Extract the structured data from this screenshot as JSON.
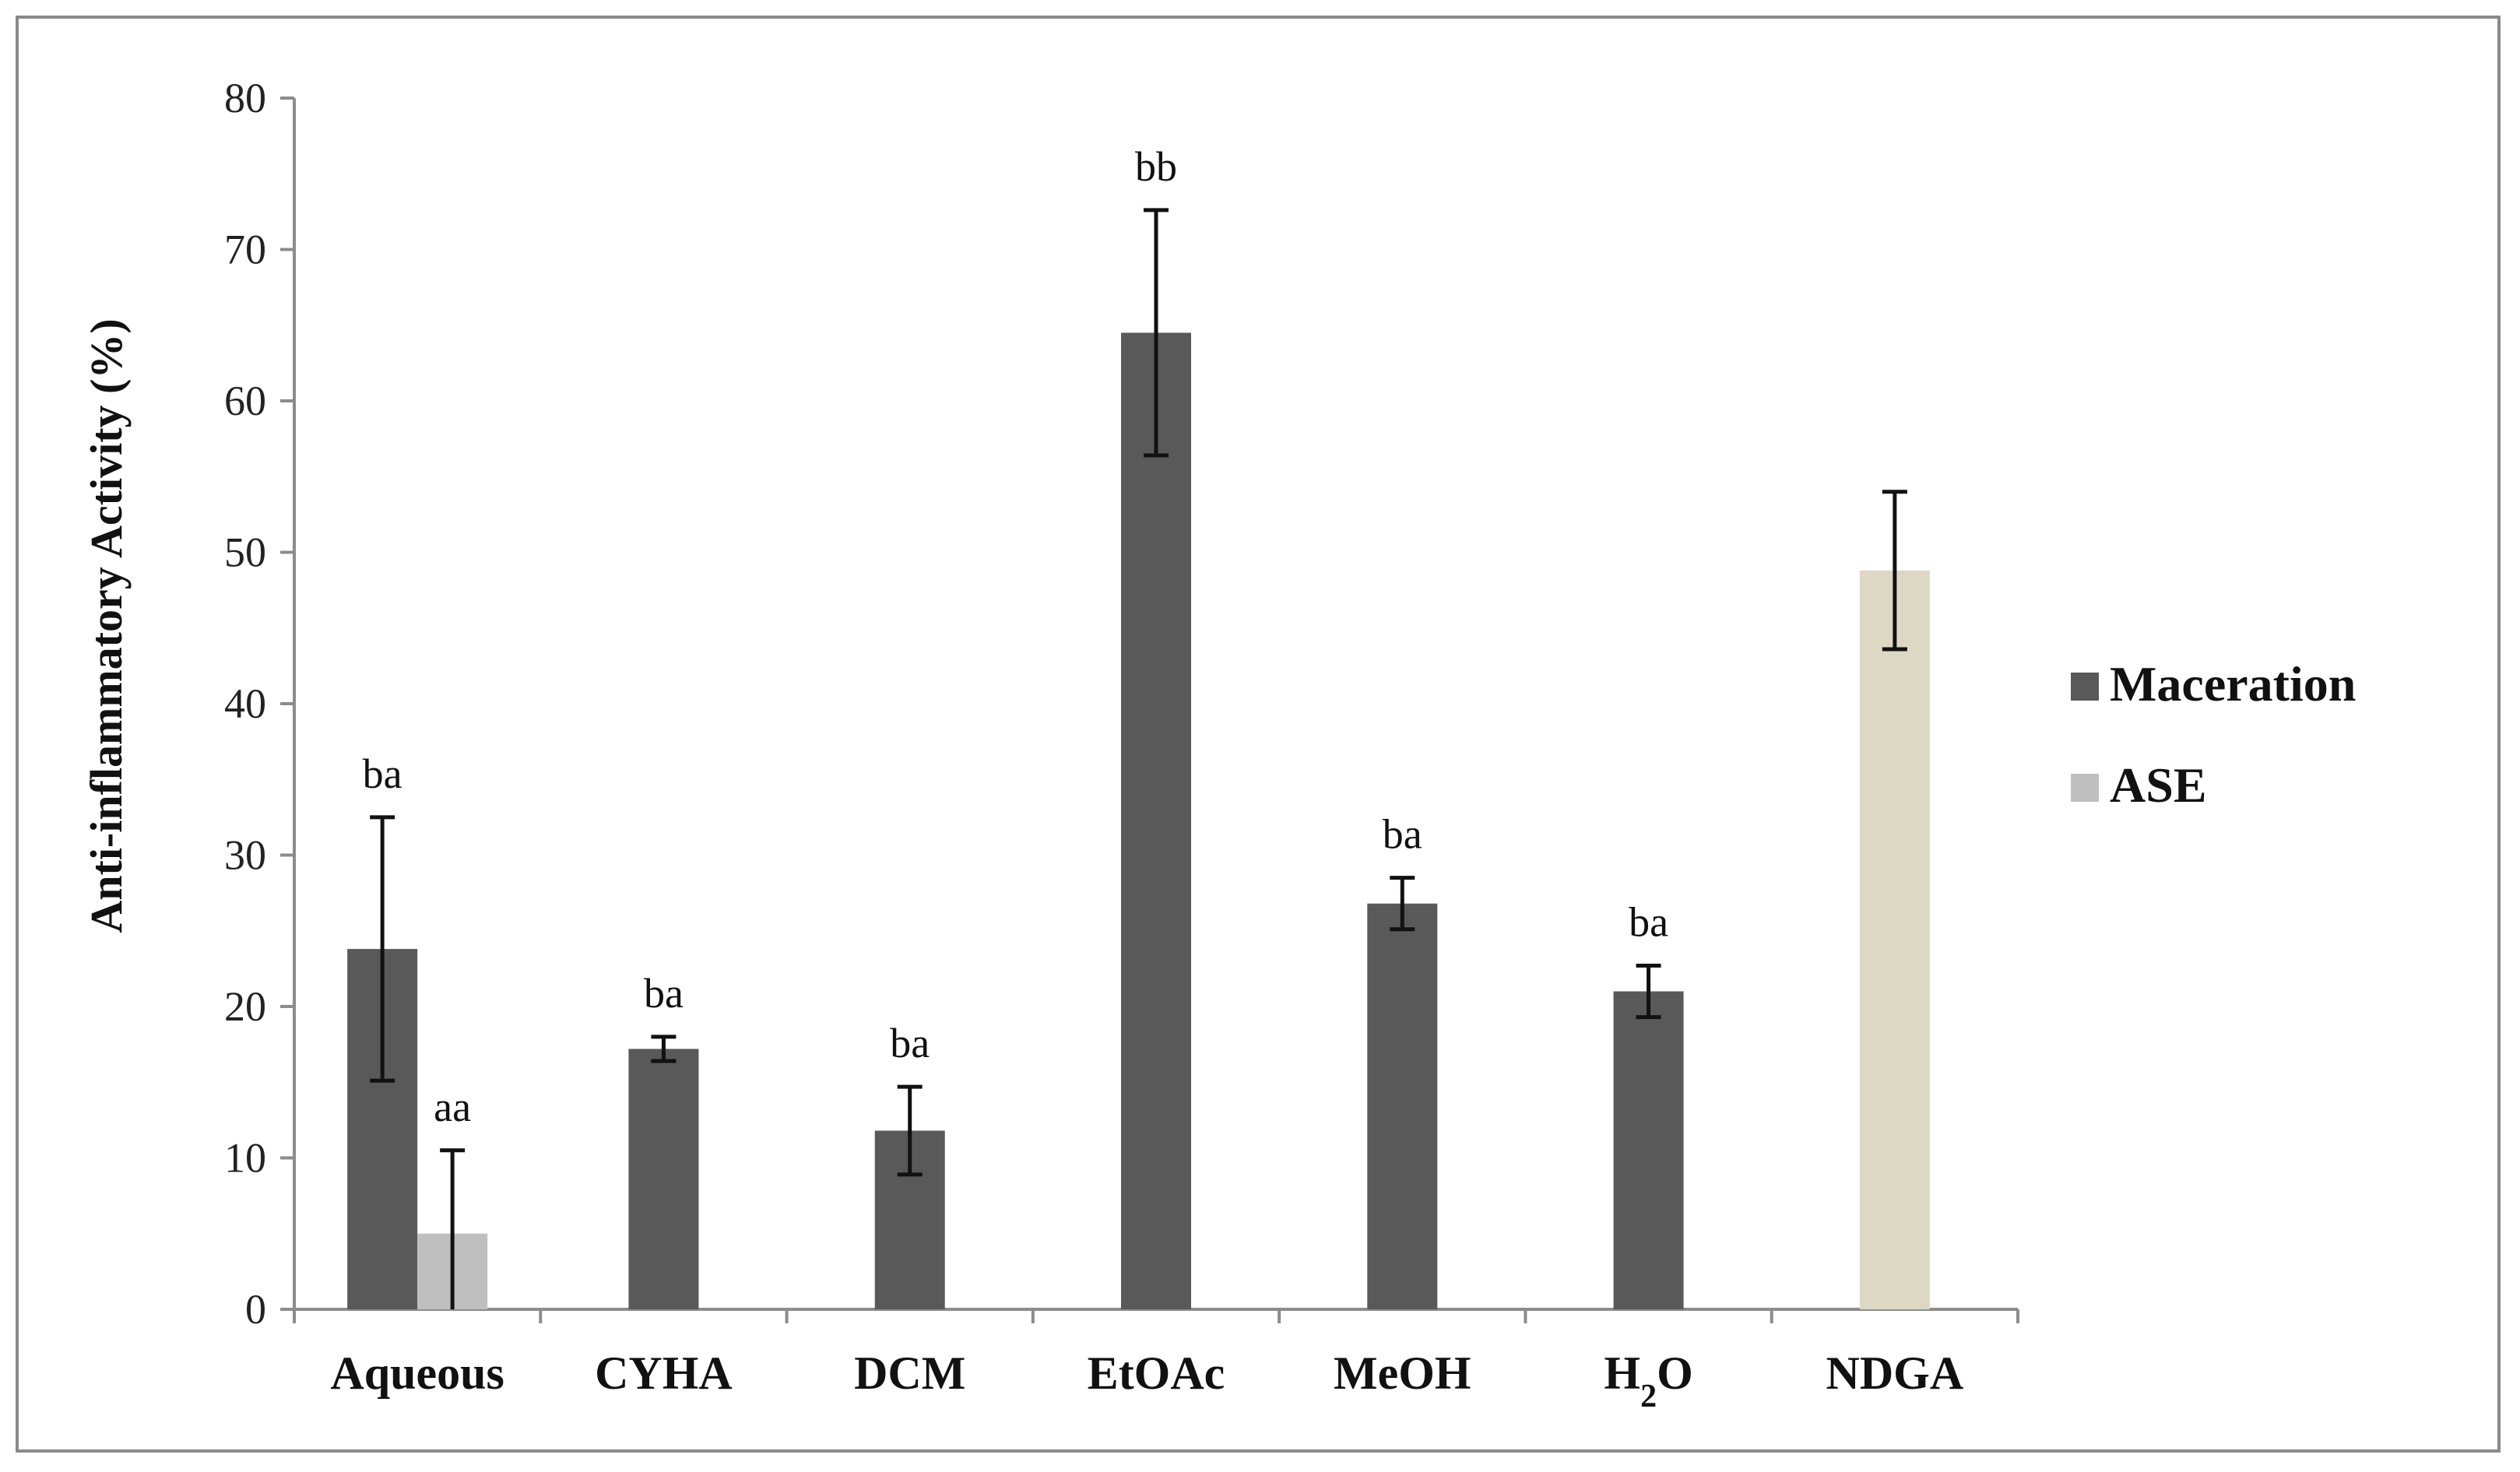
{
  "chart_data": {
    "type": "bar",
    "title": "",
    "xlabel": "",
    "ylabel": "Anti-inflammatory Activity (%)",
    "ylim": [
      0,
      80
    ],
    "yticks": [
      0,
      10,
      20,
      30,
      40,
      50,
      60,
      70,
      80
    ],
    "categories": [
      {
        "main": "Aqueous",
        "sub": "",
        "tail": ""
      },
      {
        "main": "CYHA",
        "sub": "",
        "tail": ""
      },
      {
        "main": "DCM",
        "sub": "",
        "tail": ""
      },
      {
        "main": "EtOAc",
        "sub": "",
        "tail": ""
      },
      {
        "main": "MeOH",
        "sub": "",
        "tail": ""
      },
      {
        "main": "H",
        "sub": "2",
        "tail": "O"
      },
      {
        "main": "NDGA",
        "sub": "",
        "tail": ""
      }
    ],
    "legend_position": "right",
    "series": [
      {
        "name": "Maceration",
        "color": "#595959",
        "values": [
          23.8,
          17.2,
          11.8,
          64.5,
          26.8,
          21.0,
          48.8
        ],
        "errors": [
          8.7,
          0.8,
          2.9,
          8.1,
          1.7,
          1.7,
          5.2
        ],
        "labels": [
          "ba",
          "ba",
          "ba",
          "bb",
          "ba",
          "ba",
          ""
        ],
        "bar_colors": [
          "#595959",
          "#595959",
          "#595959",
          "#595959",
          "#595959",
          "#595959",
          "#ddd8c4"
        ]
      },
      {
        "name": "ASE",
        "color": "#bfbfbf",
        "values": [
          5.0,
          null,
          null,
          null,
          null,
          null,
          null
        ],
        "errors": [
          5.5,
          null,
          null,
          null,
          null,
          null,
          null
        ],
        "labels": [
          "aa",
          "",
          "",
          "",
          "",
          "",
          ""
        ]
      }
    ]
  }
}
